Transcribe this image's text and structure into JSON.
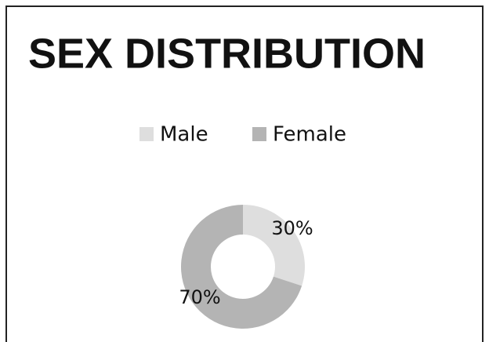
{
  "chart_data": {
    "type": "pie",
    "donut": true,
    "title": "SEX DISTRIBUTION",
    "categories": [
      "Male",
      "Female"
    ],
    "values": [
      30,
      70
    ],
    "value_labels": [
      "30%",
      "70%"
    ],
    "colors": [
      "#dedede",
      "#b4b4b4"
    ],
    "legend": "top"
  }
}
